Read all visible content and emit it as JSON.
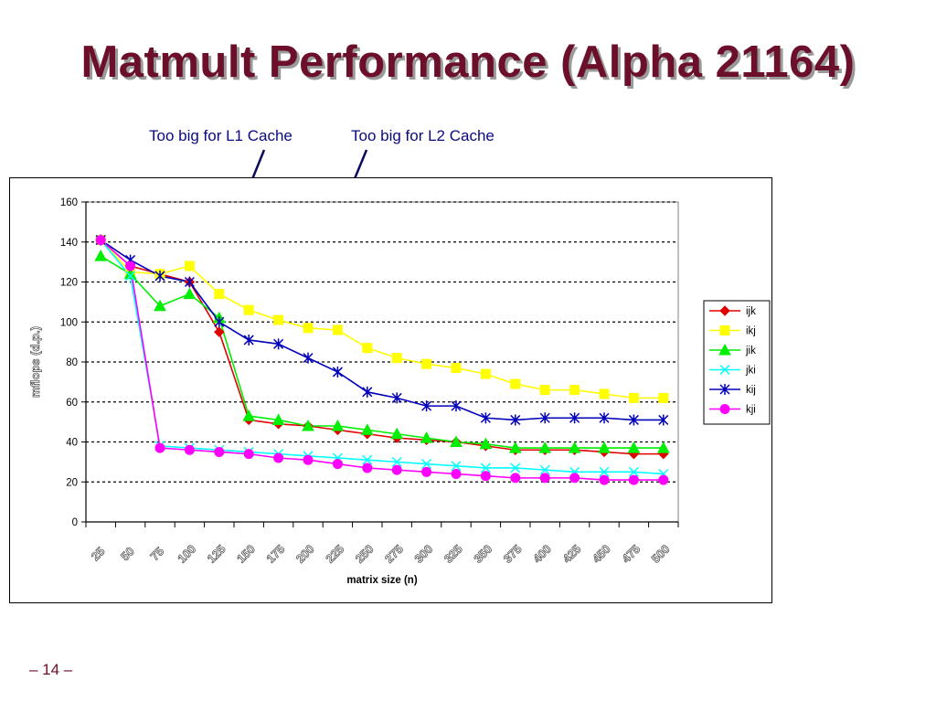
{
  "slide": {
    "title": "Matmult Performance (Alpha 21164)",
    "page_number": "– 14 –",
    "title_color": "#6b0f2a"
  },
  "annotations": [
    {
      "text": "Too big for L1 Cache",
      "points_to_x": 100,
      "points_to_y": 67
    },
    {
      "text": "Too big for L2 Cache",
      "points_to_x": 185,
      "points_to_y": 67
    }
  ],
  "chart_data": {
    "type": "line",
    "title": "",
    "xlabel": "matrix size (n)",
    "ylabel": "mflops (d.p.)",
    "categories": [
      "25",
      "50",
      "75",
      "100",
      "125",
      "150",
      "175",
      "200",
      "225",
      "250",
      "275",
      "300",
      "325",
      "350",
      "375",
      "400",
      "425",
      "450",
      "475",
      "500"
    ],
    "ylim": [
      0,
      160
    ],
    "yticks": [
      0,
      20,
      40,
      60,
      80,
      100,
      120,
      140,
      160
    ],
    "grid": true,
    "legend": "right",
    "series": [
      {
        "name": "ijk",
        "color": "#e00000",
        "marker": "diamond",
        "values": [
          141,
          128,
          124,
          120,
          95,
          51,
          49,
          48,
          46,
          44,
          42,
          41,
          40,
          38,
          36,
          36,
          36,
          35,
          34,
          34
        ]
      },
      {
        "name": "ikj",
        "color": "#ffff00",
        "marker": "square",
        "values": [
          141,
          125,
          124,
          128,
          114,
          106,
          101,
          97,
          96,
          87,
          82,
          79,
          77,
          74,
          69,
          66,
          66,
          64,
          62,
          62
        ]
      },
      {
        "name": "jik",
        "color": "#00ee00",
        "marker": "triangle",
        "values": [
          133,
          124,
          108,
          114,
          102,
          53,
          51,
          48,
          48,
          46,
          44,
          42,
          40,
          39,
          37,
          37,
          37,
          37,
          37,
          37
        ]
      },
      {
        "name": "jki",
        "color": "#00ffff",
        "marker": "x",
        "values": [
          141,
          123,
          38,
          37,
          36,
          35,
          34,
          33,
          32,
          31,
          30,
          29,
          28,
          27,
          27,
          26,
          25,
          25,
          25,
          24
        ]
      },
      {
        "name": "kij",
        "color": "#0000bb",
        "marker": "star",
        "values": [
          141,
          131,
          123,
          120,
          100,
          91,
          89,
          82,
          75,
          65,
          62,
          58,
          58,
          52,
          51,
          52,
          52,
          52,
          51,
          51
        ]
      },
      {
        "name": "kji",
        "color": "#ff00ff",
        "marker": "circle",
        "values": [
          141,
          128,
          37,
          36,
          35,
          34,
          32,
          31,
          29,
          27,
          26,
          25,
          24,
          23,
          22,
          22,
          22,
          21,
          21,
          21
        ]
      }
    ]
  }
}
